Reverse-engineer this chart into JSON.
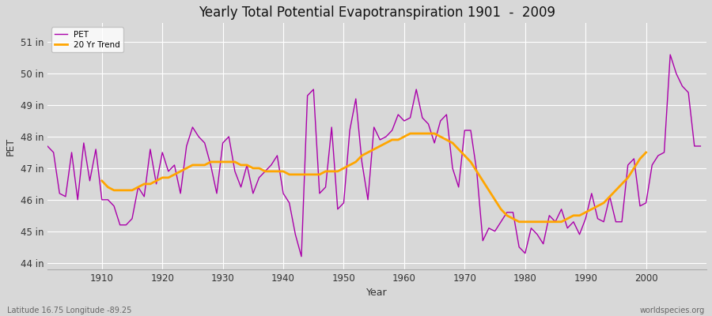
{
  "title": "Yearly Total Potential Evapotranspiration 1901  -  2009",
  "ylabel": "PET",
  "xlabel": "Year",
  "subtitle_left": "Latitude 16.75 Longitude -89.25",
  "subtitle_right": "worldspecies.org",
  "pet_color": "#aa00aa",
  "trend_color": "#ffa500",
  "background_color": "#d8d8d8",
  "plot_background": "#d8d8d8",
  "ylim": [
    43.8,
    51.6
  ],
  "yticks": [
    44,
    45,
    46,
    47,
    48,
    49,
    50,
    51
  ],
  "ytick_labels": [
    "44 in",
    "45 in",
    "46 in",
    "47 in",
    "48 in",
    "49 in",
    "50 in",
    "51 in"
  ],
  "years": [
    1901,
    1902,
    1903,
    1904,
    1905,
    1906,
    1907,
    1908,
    1909,
    1910,
    1911,
    1912,
    1913,
    1914,
    1915,
    1916,
    1917,
    1918,
    1919,
    1920,
    1921,
    1922,
    1923,
    1924,
    1925,
    1926,
    1927,
    1928,
    1929,
    1930,
    1931,
    1932,
    1933,
    1934,
    1935,
    1936,
    1937,
    1938,
    1939,
    1940,
    1941,
    1942,
    1943,
    1944,
    1945,
    1946,
    1947,
    1948,
    1949,
    1950,
    1951,
    1952,
    1953,
    1954,
    1955,
    1956,
    1957,
    1958,
    1959,
    1960,
    1961,
    1962,
    1963,
    1964,
    1965,
    1966,
    1967,
    1968,
    1969,
    1970,
    1971,
    1972,
    1973,
    1974,
    1975,
    1976,
    1977,
    1978,
    1979,
    1980,
    1981,
    1982,
    1983,
    1984,
    1985,
    1986,
    1987,
    1988,
    1989,
    1990,
    1991,
    1992,
    1993,
    1994,
    1995,
    1996,
    1997,
    1998,
    1999,
    2000,
    2001,
    2002,
    2003,
    2004,
    2005,
    2006,
    2007,
    2008,
    2009
  ],
  "pet_values": [
    47.7,
    47.5,
    46.2,
    46.1,
    47.5,
    46.0,
    47.8,
    46.6,
    47.6,
    46.0,
    46.0,
    45.8,
    45.2,
    45.2,
    45.4,
    46.4,
    46.1,
    47.6,
    46.5,
    47.5,
    46.9,
    47.1,
    46.2,
    47.7,
    48.3,
    48.0,
    47.8,
    47.1,
    46.2,
    47.8,
    48.0,
    46.9,
    46.4,
    47.1,
    46.2,
    46.7,
    46.9,
    47.1,
    47.4,
    46.2,
    45.9,
    44.9,
    44.2,
    49.3,
    49.5,
    46.2,
    46.4,
    48.3,
    45.7,
    45.9,
    48.2,
    49.2,
    47.2,
    46.0,
    48.3,
    47.9,
    48.0,
    48.2,
    48.7,
    48.5,
    48.6,
    49.5,
    48.6,
    48.4,
    47.8,
    48.5,
    48.7,
    47.0,
    46.4,
    48.2,
    48.2,
    46.9,
    44.7,
    45.1,
    45.0,
    45.3,
    45.6,
    45.6,
    44.5,
    44.3,
    45.1,
    44.9,
    44.6,
    45.5,
    45.3,
    45.7,
    45.1,
    45.3,
    44.9,
    45.4,
    46.2,
    45.4,
    45.3,
    46.1,
    45.3,
    45.3,
    47.1,
    47.3,
    45.8,
    45.9,
    47.1,
    47.4,
    47.5,
    50.6,
    50.0,
    49.6,
    49.4,
    47.7,
    47.7
  ],
  "trend_values": [
    null,
    null,
    null,
    null,
    null,
    null,
    null,
    null,
    null,
    46.6,
    46.4,
    46.3,
    46.3,
    46.3,
    46.3,
    46.4,
    46.5,
    46.5,
    46.6,
    46.7,
    46.7,
    46.8,
    46.9,
    47.0,
    47.1,
    47.1,
    47.1,
    47.2,
    47.2,
    47.2,
    47.2,
    47.2,
    47.1,
    47.1,
    47.0,
    47.0,
    46.9,
    46.9,
    46.9,
    46.9,
    46.8,
    46.8,
    46.8,
    46.8,
    46.8,
    46.8,
    46.9,
    46.9,
    46.9,
    47.0,
    47.1,
    47.2,
    47.4,
    47.5,
    47.6,
    47.7,
    47.8,
    47.9,
    47.9,
    48.0,
    48.1,
    48.1,
    48.1,
    48.1,
    48.1,
    48.0,
    47.9,
    47.8,
    47.6,
    47.4,
    47.2,
    46.9,
    46.6,
    46.3,
    46.0,
    45.7,
    45.5,
    45.4,
    45.3,
    45.3,
    45.3,
    45.3,
    45.3,
    45.3,
    45.3,
    45.3,
    45.4,
    45.5,
    45.5,
    45.6,
    45.7,
    45.8,
    45.9,
    46.1,
    46.3,
    46.5,
    46.7,
    47.0,
    47.3,
    47.5,
    null,
    null,
    null,
    null,
    null,
    null,
    null,
    null,
    null
  ]
}
